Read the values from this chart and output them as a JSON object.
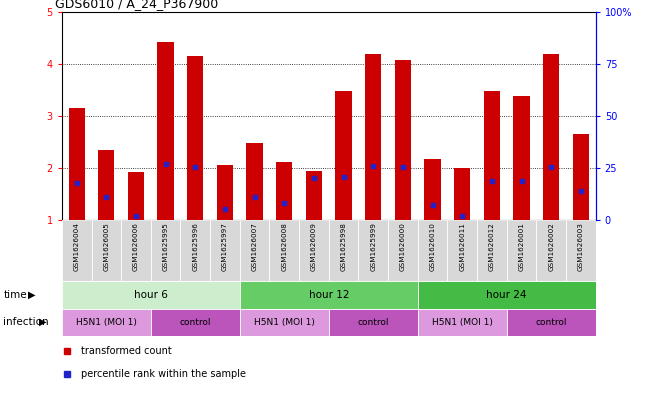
{
  "title": "GDS6010 / A_24_P367900",
  "samples": [
    "GSM1626004",
    "GSM1626005",
    "GSM1626006",
    "GSM1625995",
    "GSM1625996",
    "GSM1625997",
    "GSM1626007",
    "GSM1626008",
    "GSM1626009",
    "GSM1625998",
    "GSM1625999",
    "GSM1626000",
    "GSM1626010",
    "GSM1626011",
    "GSM1626012",
    "GSM1626001",
    "GSM1626002",
    "GSM1626003"
  ],
  "red_bars": [
    3.15,
    2.35,
    1.93,
    4.42,
    4.15,
    2.05,
    2.48,
    2.12,
    1.95,
    3.48,
    4.18,
    4.07,
    2.17,
    2.0,
    3.48,
    3.38,
    4.18,
    2.65
  ],
  "blue_marks": [
    1.72,
    1.45,
    1.08,
    2.07,
    2.02,
    1.22,
    1.44,
    1.32,
    1.8,
    1.82,
    2.03,
    2.02,
    1.28,
    1.08,
    1.75,
    1.75,
    2.02,
    1.55
  ],
  "ylim": [
    1,
    5
  ],
  "yticks_left": [
    1,
    2,
    3,
    4,
    5
  ],
  "yticks_right": [
    0,
    25,
    50,
    75,
    100
  ],
  "bar_color": "#cc0000",
  "blue_color": "#2222cc",
  "time_groups": [
    {
      "label": "hour 6",
      "start": 0,
      "end": 6,
      "color": "#cceecc"
    },
    {
      "label": "hour 12",
      "start": 6,
      "end": 12,
      "color": "#66cc66"
    },
    {
      "label": "hour 24",
      "start": 12,
      "end": 18,
      "color": "#44bb44"
    }
  ],
  "infection_groups": [
    {
      "label": "H5N1 (MOI 1)",
      "start": 0,
      "end": 3,
      "color": "#dd99dd"
    },
    {
      "label": "control",
      "start": 3,
      "end": 6,
      "color": "#bb55bb"
    },
    {
      "label": "H5N1 (MOI 1)",
      "start": 6,
      "end": 9,
      "color": "#dd99dd"
    },
    {
      "label": "control",
      "start": 9,
      "end": 12,
      "color": "#bb55bb"
    },
    {
      "label": "H5N1 (MOI 1)",
      "start": 12,
      "end": 15,
      "color": "#dd99dd"
    },
    {
      "label": "control",
      "start": 15,
      "end": 18,
      "color": "#bb55bb"
    }
  ]
}
